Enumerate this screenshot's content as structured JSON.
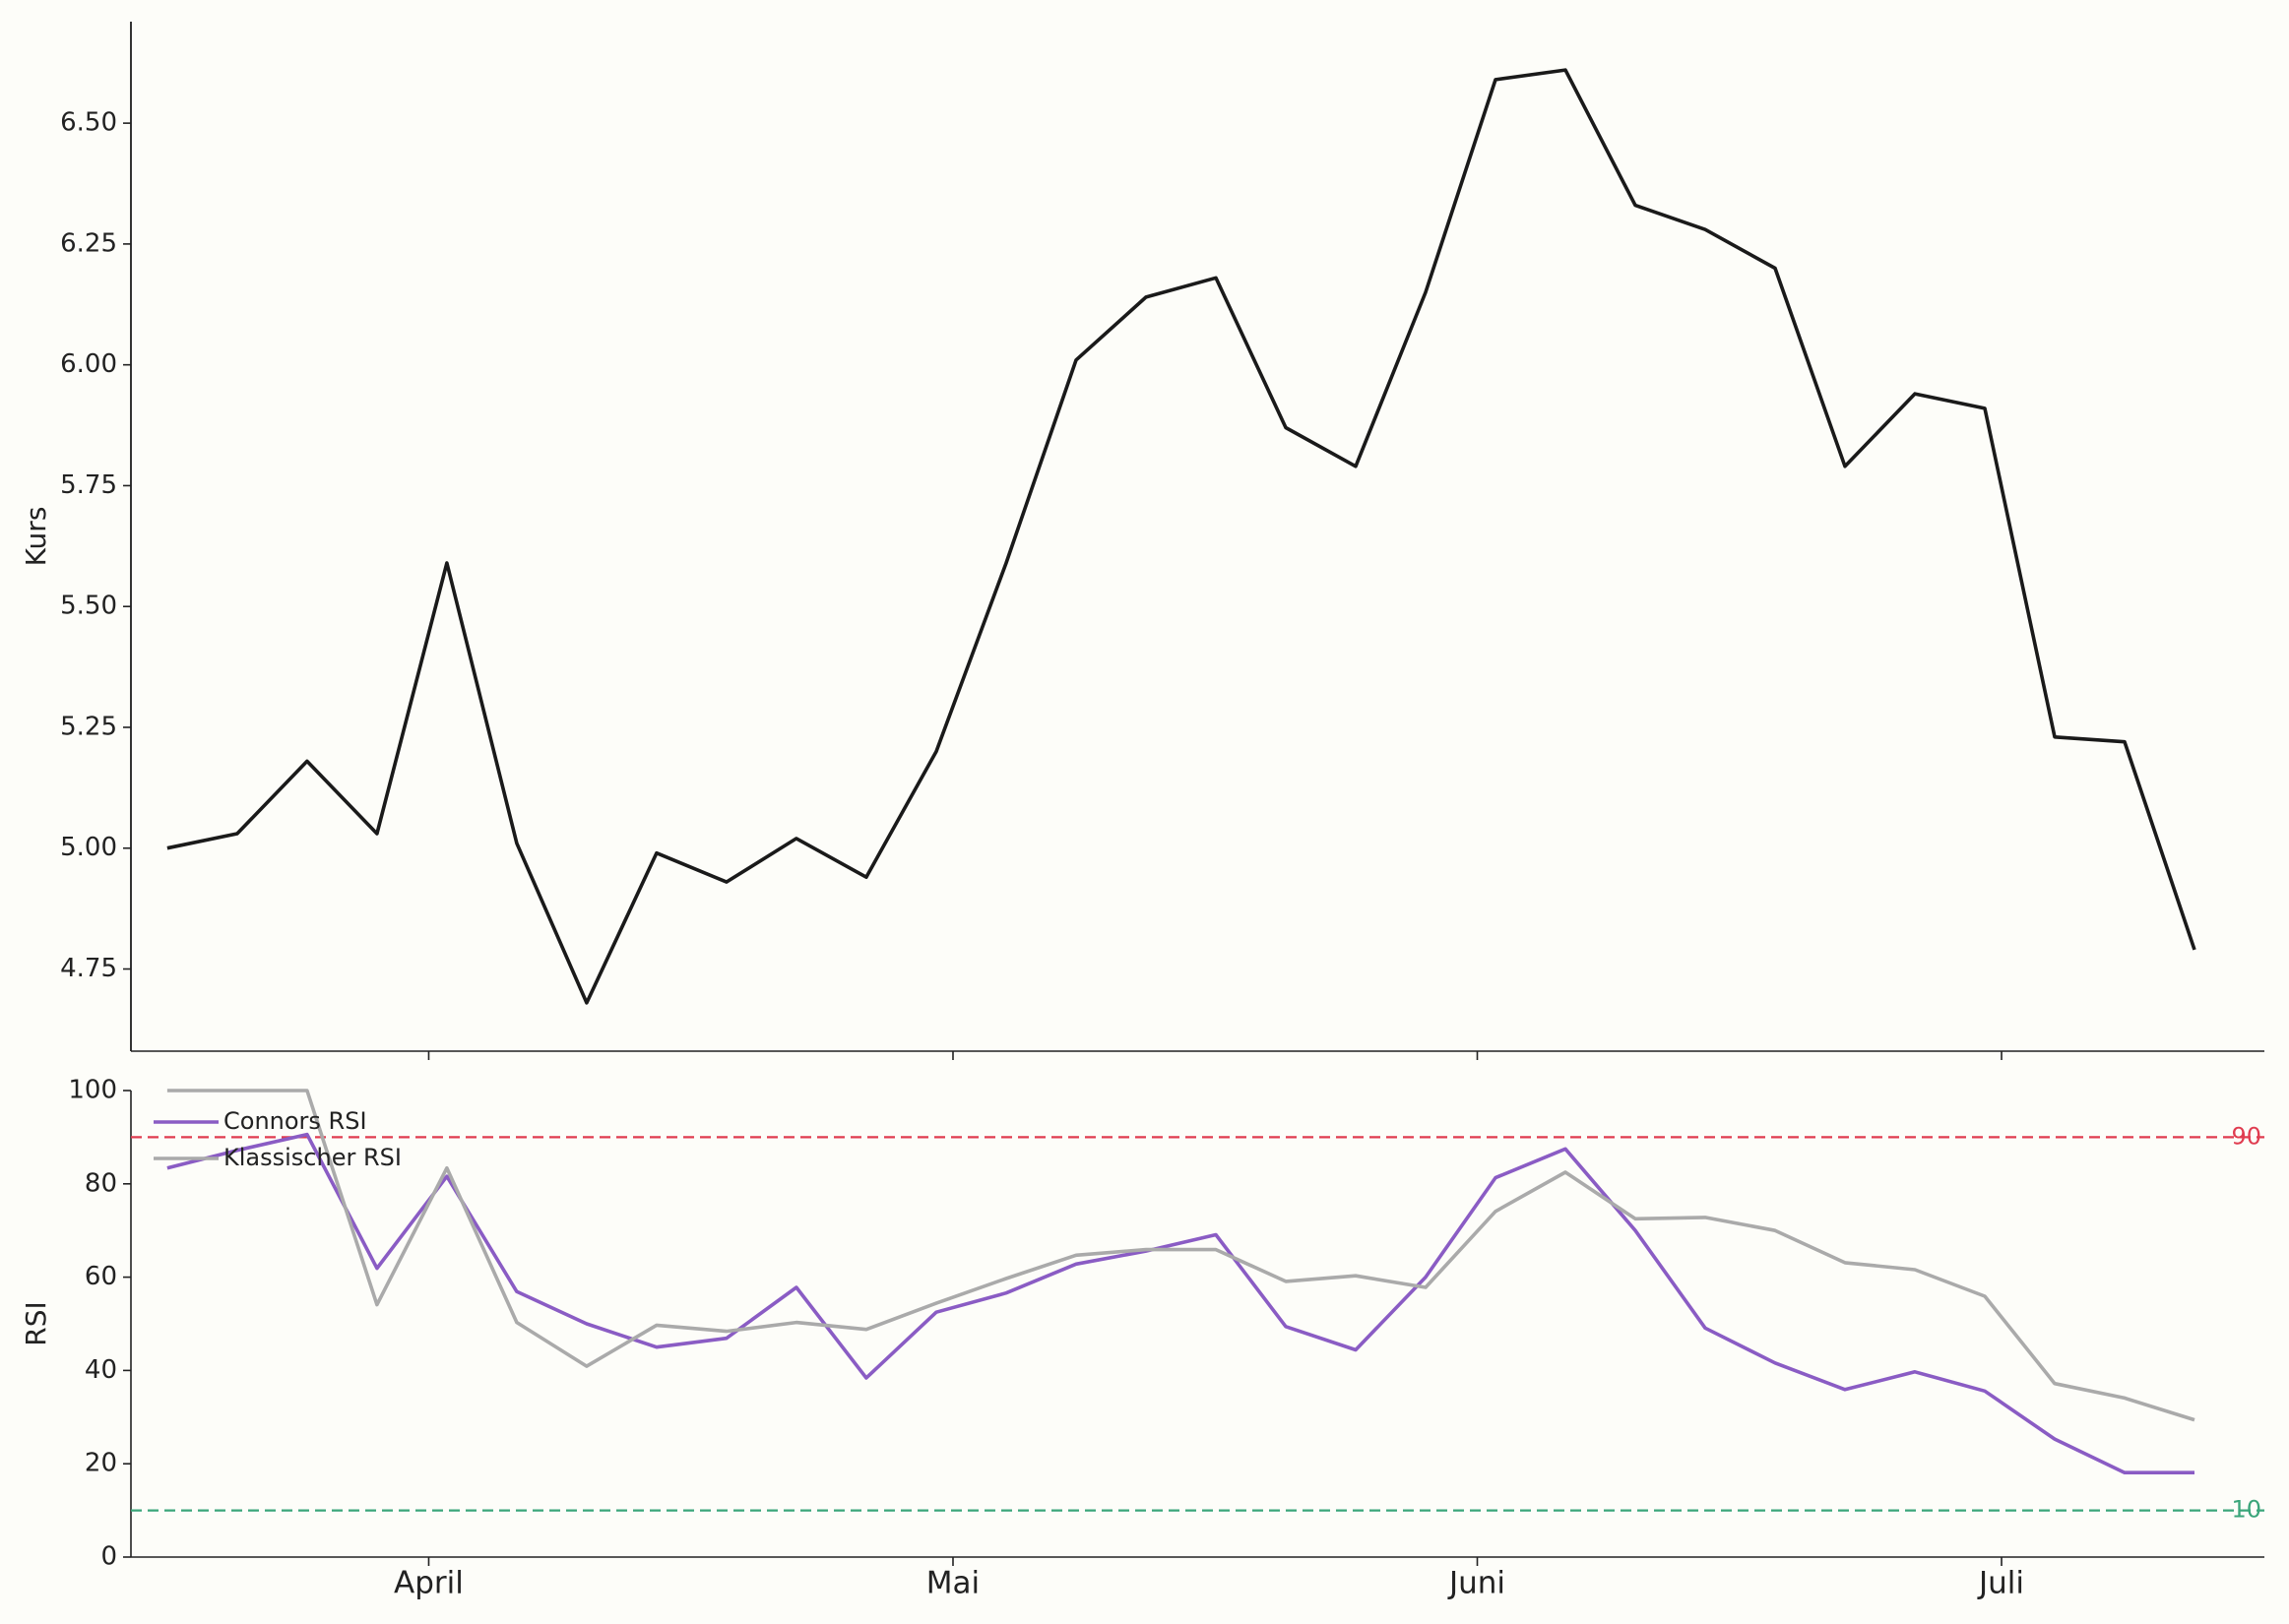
{
  "chart_data": [
    {
      "type": "line",
      "ylabel": "Kurs",
      "categories": [
        null,
        null,
        null,
        null,
        null,
        null,
        null,
        null,
        null,
        null,
        null,
        null,
        null,
        null,
        null,
        null,
        null,
        null,
        null,
        null,
        null,
        null,
        null,
        null,
        null,
        null,
        null,
        null,
        null,
        null
      ],
      "series": [
        {
          "color": "#1a1a1a",
          "values": [
            5.0,
            5.03,
            5.18,
            5.03,
            5.59,
            5.01,
            4.68,
            4.99,
            4.93,
            5.02,
            4.94,
            5.2,
            5.59,
            6.01,
            6.14,
            6.18,
            5.87,
            5.79,
            6.15,
            6.59,
            6.61,
            6.33,
            6.28,
            6.2,
            5.79,
            5.94,
            5.91,
            5.23,
            5.22,
            4.79
          ]
        }
      ],
      "xlim": [
        -0.52,
        30.0
      ],
      "ylim": [
        4.58,
        6.71
      ],
      "yticks": [
        {
          "value": 4.75,
          "label": "4.75"
        },
        {
          "value": 5,
          "label": "5.00"
        },
        {
          "value": 5.25,
          "label": "5.25"
        },
        {
          "value": 5.5,
          "label": "5.50"
        },
        {
          "value": 5.75,
          "label": "5.75"
        },
        {
          "value": 6,
          "label": "6.00"
        },
        {
          "value": 6.25,
          "label": "6.25"
        },
        {
          "value": 6.5,
          "label": "6.50"
        }
      ]
    },
    {
      "type": "line",
      "ylabel": "RSI",
      "categories": [
        null,
        null,
        null,
        null,
        null,
        null,
        null,
        null,
        null,
        null,
        null,
        null,
        null,
        null,
        null,
        null,
        null,
        null,
        null,
        null,
        null,
        null,
        null,
        null,
        null,
        null,
        null,
        null,
        null,
        null
      ],
      "series": [
        {
          "name": "Connors RSI",
          "color": "#8a5cc4",
          "values": [
            83.4,
            87.2,
            90.6,
            61.9,
            81.6,
            56.9,
            50,
            45,
            46.9,
            57.8,
            38.4,
            52.5,
            56.6,
            62.8,
            65.6,
            69.1,
            49.4,
            44.4,
            60,
            81.3,
            87.5,
            70,
            49.1,
            41.6,
            35.9,
            39.7,
            35.6,
            25.3,
            18.1,
            18.1
          ]
        },
        {
          "name": "Klassischer RSI",
          "color": "#aaaaaa",
          "values": [
            100,
            100,
            100,
            54.1,
            83.4,
            50.3,
            40.9,
            49.7,
            48.4,
            50.3,
            48.8,
            54.4,
            59.7,
            64.7,
            65.9,
            65.9,
            59.1,
            60.3,
            57.8,
            74.1,
            82.5,
            72.5,
            72.8,
            70,
            63.1,
            61.6,
            55.9,
            37.2,
            34.1,
            29.4
          ]
        }
      ],
      "hlines": [
        {
          "value": 90,
          "color": "#e03c50"
        },
        {
          "value": 10,
          "color": "#3aa57a"
        }
      ],
      "legend": "upper left",
      "xlim": [
        -0.52,
        30.0
      ],
      "ylim": [
        0,
        100
      ],
      "yticks": [
        0,
        20,
        40,
        60,
        80,
        100
      ],
      "xticks": [
        {
          "value": 3.74,
          "label": "April"
        },
        {
          "value": 11.24,
          "label": "Mai"
        },
        {
          "value": 18.74,
          "label": "Juni"
        },
        {
          "value": 26.24,
          "label": "Juli"
        }
      ]
    }
  ]
}
